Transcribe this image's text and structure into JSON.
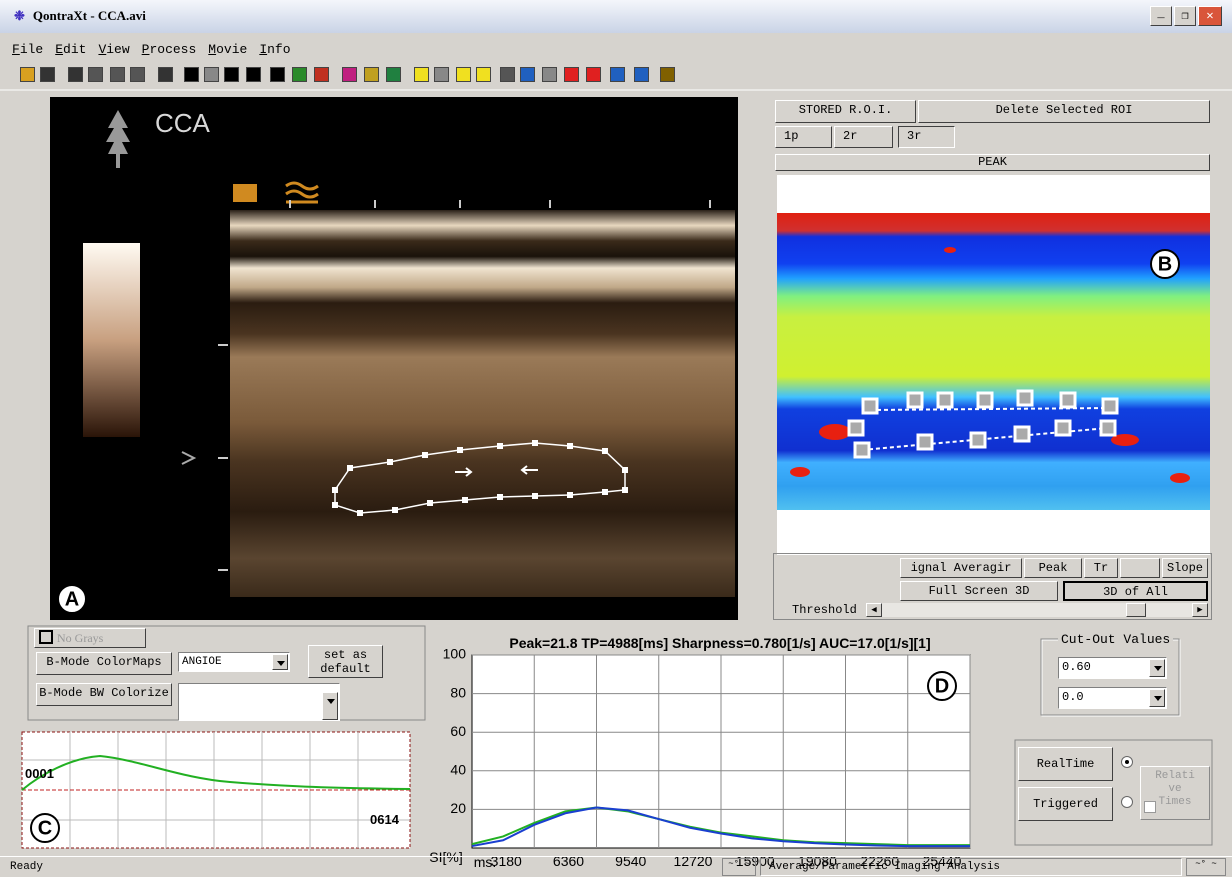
{
  "window": {
    "title": "QontraXt - CCA.avi",
    "menu": [
      "File",
      "Edit",
      "View",
      "Process",
      "Movie",
      "Info"
    ]
  },
  "image_a": {
    "label": "A",
    "caption": "CCA"
  },
  "roi_panel": {
    "stored": "STORED R.O.I.",
    "delete": "Delete Selected ROI",
    "tabs": [
      "1p",
      "2r",
      "3r"
    ],
    "mode": "PEAK",
    "label": "B",
    "buttons": [
      "ignal Averagir",
      "Peak",
      "Tr",
      "Slope"
    ],
    "full_screen": "Full Screen 3D",
    "all_3d": "3D of All",
    "threshold": "Threshold"
  },
  "bmode": {
    "no_grays": "No Grays",
    "colormaps": "B-Mode ColorMaps",
    "colormap_value": "ANGIOE",
    "set_default": "set as default",
    "bw_colorize": "B-Mode BW Colorize"
  },
  "chart_c": {
    "label": "C",
    "start": "0001",
    "end": "0614"
  },
  "chart_data": {
    "type": "line",
    "title": "Peak=21.8  TP=4988[ms]  Sharpness=0.780[1/s]  AUC=17.0[1/s][1]",
    "annotation": "D",
    "xlabel": "ms.",
    "ylabel": "SI[%]",
    "x": [
      0,
      1590,
      3180,
      4770,
      6360,
      7950,
      9540,
      11130,
      12720,
      14310,
      15900,
      17490,
      19080,
      20670,
      22260,
      23850,
      25440
    ],
    "series": [
      {
        "color": "#22b022",
        "values": [
          2,
          6,
          13,
          19,
          21,
          19,
          15,
          11,
          8,
          6,
          4,
          3,
          2.5,
          2,
          1.5,
          1.5,
          1.5
        ]
      },
      {
        "color": "#1a3fd0",
        "values": [
          1,
          4,
          12,
          18,
          21,
          19.5,
          15,
          10.5,
          7.5,
          5,
          3.5,
          2.5,
          1.8,
          1.3,
          1,
          1,
          1
        ]
      }
    ],
    "xlim": [
      0,
      25440
    ],
    "ylim": [
      0,
      100
    ],
    "xticks": [
      3180,
      6360,
      9540,
      12720,
      15900,
      19080,
      22260,
      25440
    ],
    "yticks": [
      20,
      40,
      60,
      80,
      100
    ],
    "grid": true
  },
  "cutout": {
    "title": "Cut-Out Values",
    "values": [
      "0.60",
      "0.0"
    ]
  },
  "timing": {
    "realtime": "RealTime",
    "triggered": "Triggered",
    "relative_times": [
      "Relati",
      "ve",
      "Times"
    ]
  },
  "status": {
    "left": "Ready",
    "right": "Average/Parametric Imaging Analysis"
  }
}
